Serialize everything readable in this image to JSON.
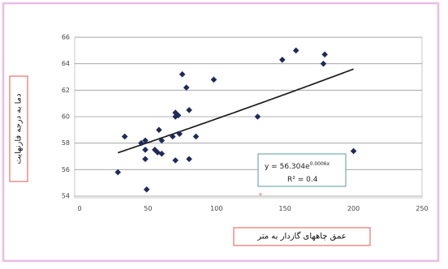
{
  "chart_data": {
    "type": "scatter",
    "xlabel": "عمق چاههای گازدار به متر",
    "ylabel": "دما به درجه فارنهایت",
    "xlim": [
      0,
      250
    ],
    "ylim": [
      54,
      66
    ],
    "x_ticks": [
      "0",
      "50",
      "100",
      "150",
      "200",
      "250"
    ],
    "y_ticks": [
      "54",
      "56",
      "58",
      "60",
      "62",
      "64",
      "66"
    ],
    "grid": "horizontal",
    "series": [
      {
        "points": [
          [
            28,
            55.8
          ],
          [
            33,
            58.5
          ],
          [
            45,
            58.0
          ],
          [
            48,
            57.5
          ],
          [
            48,
            58.2
          ],
          [
            48,
            56.8
          ],
          [
            49,
            54.5
          ],
          [
            55,
            57.5
          ],
          [
            57,
            57.3
          ],
          [
            58,
            59.0
          ],
          [
            60,
            58.2
          ],
          [
            60,
            57.2
          ],
          [
            68,
            58.5
          ],
          [
            70,
            60.3
          ],
          [
            70,
            60.0
          ],
          [
            70,
            56.7
          ],
          [
            72,
            60.1
          ],
          [
            73,
            58.7
          ],
          [
            75,
            63.2
          ],
          [
            78,
            62.2
          ],
          [
            80,
            60.5
          ],
          [
            80,
            56.8
          ],
          [
            85,
            58.5
          ],
          [
            98,
            62.8
          ],
          [
            130,
            60.0
          ],
          [
            148,
            64.3
          ],
          [
            158,
            65.0
          ],
          [
            178,
            64.0
          ],
          [
            179,
            64.7
          ],
          [
            200,
            57.4
          ]
        ]
      }
    ],
    "trendline": {
      "type": "exponential",
      "equation": "y = 56.304e",
      "exponent": "0.0006x",
      "r_squared": "R² = 0.4",
      "a": 56.304,
      "b": 0.000609
    },
    "marker_color": "#1f2a5c",
    "gridline_color": "#9a9a9a"
  }
}
